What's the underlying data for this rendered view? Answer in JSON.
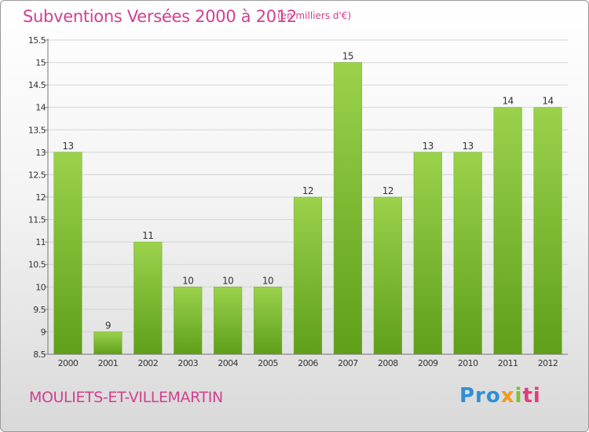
{
  "title": "Subventions Versées 2000 à 2012",
  "unit": "(en milliers d'€)",
  "place": "MOULIETS-ET-VILLEMARTIN",
  "logo": {
    "p1": "Pro",
    "p2": "x",
    "p3": "i",
    "p4": "ti"
  },
  "colors": {
    "title": "#d23f91",
    "bar_top": "#9bd24c",
    "bar_bottom": "#5f9f1a"
  },
  "chart_data": {
    "type": "bar",
    "title": "Subventions Versées 2000 à 2012",
    "subtitle": "(en milliers d'€)",
    "categories": [
      "2000",
      "2001",
      "2002",
      "2003",
      "2004",
      "2005",
      "2006",
      "2007",
      "2008",
      "2009",
      "2010",
      "2011",
      "2012"
    ],
    "values": [
      13,
      9,
      11,
      10,
      10,
      10,
      12,
      15,
      12,
      13,
      13,
      14,
      14
    ],
    "ylim": [
      8.5,
      15.5
    ],
    "yticks": [
      "8.5",
      "9",
      "9.5",
      "10",
      "10.5",
      "11",
      "11.5",
      "12",
      "12.5",
      "13",
      "13.5",
      "14",
      "14.5",
      "15",
      "15.5"
    ],
    "grid": true
  }
}
